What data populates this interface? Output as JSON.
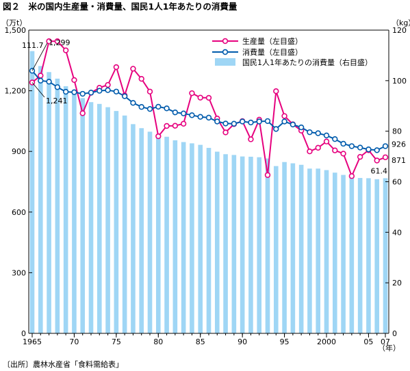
{
  "title": "図２　米の国内生産量・消費量、国民1人1年あたりの消費量",
  "source": "〔出所〕農林水産省「食料需給表」",
  "chart_data": {
    "type": "bar+line",
    "left_unit": "（万t）",
    "right_unit": "（kg）",
    "x_unit": "（年）",
    "left_ylim": [
      0,
      1500
    ],
    "left_ticks": [
      "0",
      "300",
      "600",
      "900",
      "1,200",
      "1,500"
    ],
    "right_ylim": [
      0,
      120
    ],
    "right_ticks": [
      "0",
      "20",
      "40",
      "60",
      "80",
      "100",
      "120"
    ],
    "x_ticks": [
      {
        "year": 1965,
        "label": "1965"
      },
      {
        "year": 1970,
        "label": "70"
      },
      {
        "year": 1975,
        "label": "75"
      },
      {
        "year": 1980,
        "label": "80"
      },
      {
        "year": 1985,
        "label": "85"
      },
      {
        "year": 1990,
        "label": "90"
      },
      {
        "year": 1995,
        "label": "95"
      },
      {
        "year": 2000,
        "label": "2000"
      },
      {
        "year": 2005,
        "label": "05"
      },
      {
        "year": 2007,
        "label": "07"
      }
    ],
    "grid": false,
    "legend_position": "top-right",
    "years": [
      1965,
      1966,
      1967,
      1968,
      1969,
      1970,
      1971,
      1972,
      1973,
      1974,
      1975,
      1976,
      1977,
      1978,
      1979,
      1980,
      1981,
      1982,
      1983,
      1984,
      1985,
      1986,
      1987,
      1988,
      1989,
      1990,
      1991,
      1992,
      1993,
      1994,
      1995,
      1996,
      1997,
      1998,
      1999,
      2000,
      2001,
      2002,
      2003,
      2004,
      2005,
      2006,
      2007
    ],
    "series": [
      {
        "name": "生産量（左目盛）",
        "type": "line",
        "axis": "left",
        "color": "#e6007e",
        "values": [
          1241,
          1275,
          1445,
          1445,
          1400,
          1253,
          1089,
          1190,
          1215,
          1229,
          1317,
          1177,
          1309,
          1259,
          1196,
          975,
          1026,
          1027,
          1037,
          1188,
          1166,
          1165,
          1063,
          994,
          1035,
          1050,
          960,
          1057,
          783,
          1198,
          1075,
          1034,
          1003,
          900,
          918,
          949,
          905,
          889,
          778,
          873,
          906,
          855,
          871
        ]
      },
      {
        "name": "消費量（左目盛）",
        "type": "line",
        "axis": "left",
        "color": "#005bac",
        "values": [
          1299,
          1250,
          1245,
          1218,
          1195,
          1193,
          1185,
          1191,
          1200,
          1203,
          1196,
          1173,
          1140,
          1120,
          1110,
          1121,
          1113,
          1093,
          1088,
          1079,
          1071,
          1067,
          1048,
          1038,
          1037,
          1048,
          1043,
          1048,
          1050,
          1011,
          1048,
          1033,
          1019,
          995,
          990,
          979,
          961,
          938,
          926,
          919,
          910,
          906,
          926
        ]
      },
      {
        "name": "国民1人1年あたりの消費量（右目盛）",
        "type": "bar",
        "axis": "right",
        "color": "#9fd6f5",
        "values": [
          111.7,
          105.8,
          103.4,
          100.8,
          97.8,
          95.1,
          93.1,
          91.5,
          90.8,
          89.5,
          88.0,
          86.2,
          82.8,
          81.2,
          79.8,
          78.9,
          77.8,
          76.4,
          75.7,
          75.2,
          74.6,
          73.4,
          71.9,
          70.9,
          70.6,
          70.0,
          69.9,
          69.7,
          69.2,
          66.2,
          67.8,
          67.3,
          66.7,
          65.2,
          65.2,
          64.6,
          63.6,
          62.7,
          61.9,
          61.5,
          61.4,
          61.0,
          61.4
        ]
      }
    ],
    "annotations": [
      "111.7",
      "1,299",
      "1,241",
      "926",
      "871",
      "61.4"
    ]
  }
}
